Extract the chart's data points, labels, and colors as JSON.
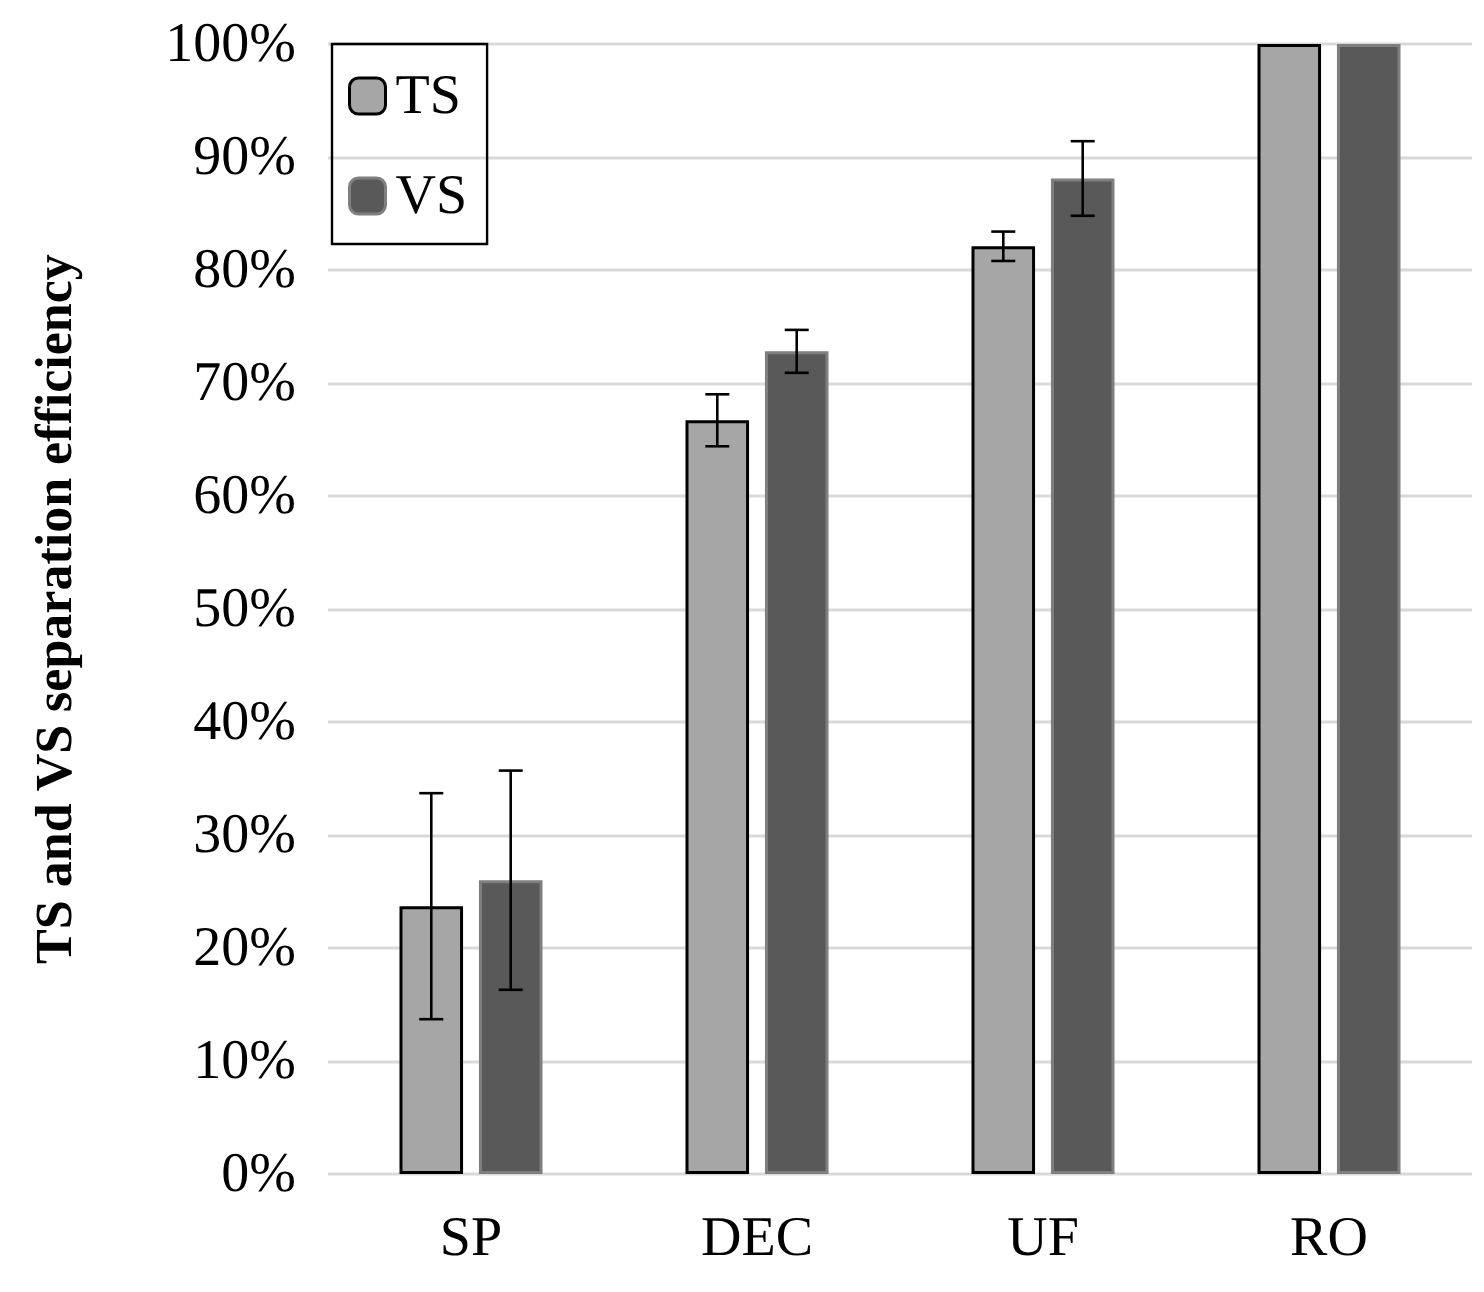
{
  "chart_data": {
    "type": "bar",
    "ylabel": "TS and VS separation efficiency",
    "categories": [
      "SP",
      "DEC",
      "UF",
      "RO"
    ],
    "series": [
      {
        "name": "TS",
        "color": "#a6a6a6",
        "values": [
          23.7,
          66.7,
          82.1,
          100
        ],
        "errors": [
          10,
          2.3,
          1.3,
          null
        ]
      },
      {
        "name": "VS",
        "color": "#595959",
        "values": [
          26,
          72.8,
          88.1,
          100
        ],
        "errors": [
          9.7,
          1.9,
          3.3,
          null
        ]
      }
    ],
    "ylim": [
      0,
      100
    ],
    "yticks": [
      {
        "value": 0,
        "label": "0%"
      },
      {
        "value": 10,
        "label": "10%"
      },
      {
        "value": 20,
        "label": "20%"
      },
      {
        "value": 30,
        "label": "30%"
      },
      {
        "value": 40,
        "label": "40%"
      },
      {
        "value": 50,
        "label": "50%"
      },
      {
        "value": 60,
        "label": "60%"
      },
      {
        "value": 70,
        "label": "70%"
      },
      {
        "value": 80,
        "label": "80%"
      },
      {
        "value": 90,
        "label": "90%"
      },
      {
        "value": 100,
        "label": "100%"
      }
    ],
    "grid": "y",
    "legend": "top left"
  }
}
